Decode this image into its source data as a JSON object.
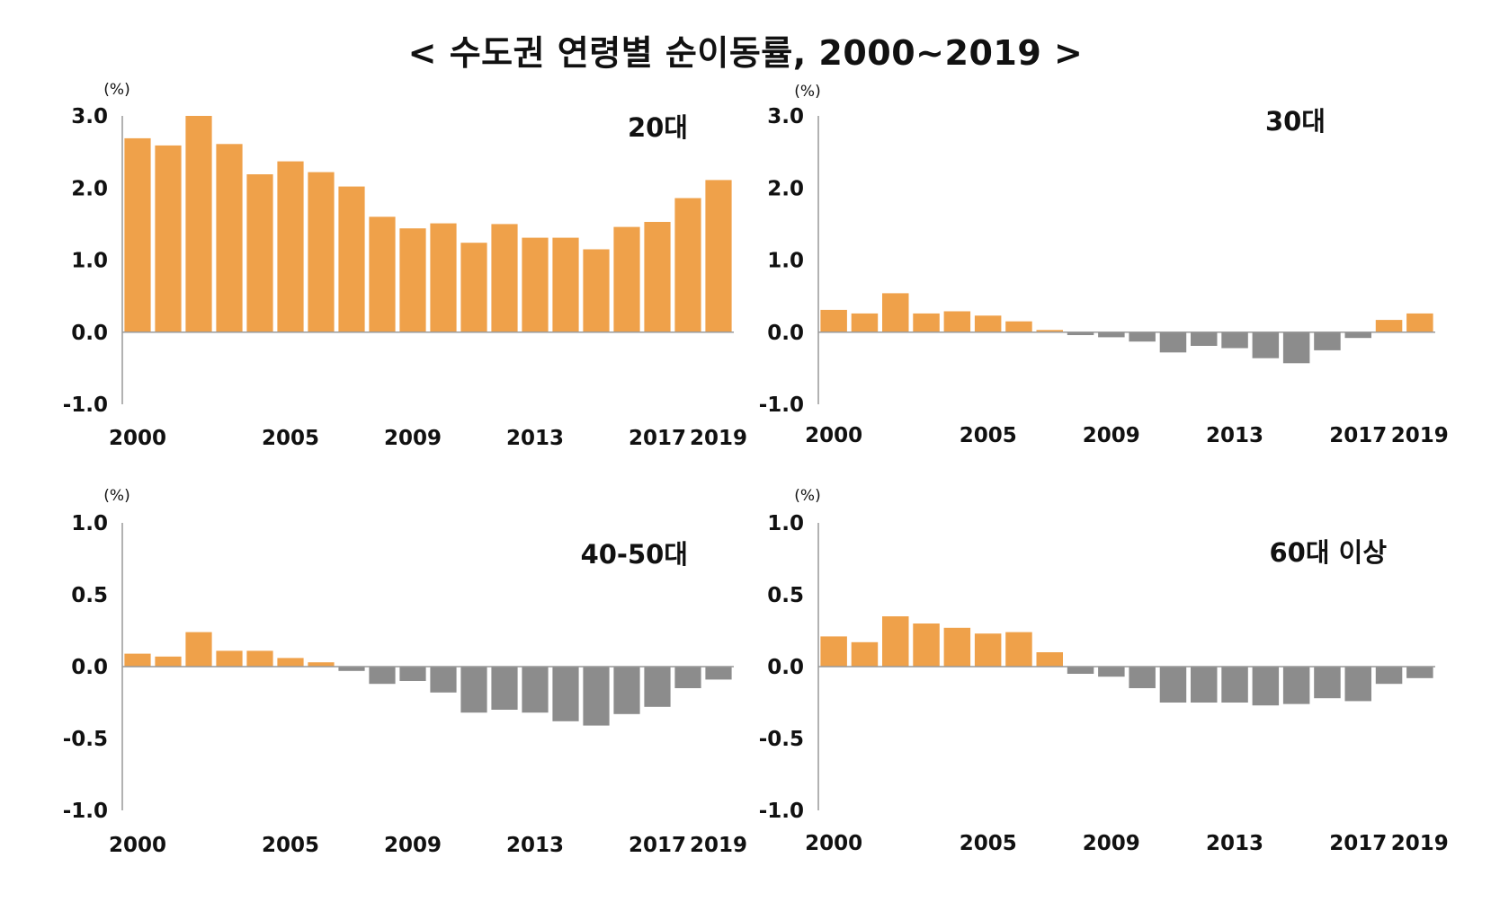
{
  "title": "< 수도권 연령별 순이동률, 2000~2019 >",
  "colors": {
    "positive": "#EFA14A",
    "negative": "#8C8C8C",
    "axis": "#999999"
  },
  "chart_data": [
    {
      "type": "bar",
      "title": "20대",
      "ylabel": "(%)",
      "ylim": [
        -1.0,
        3.0
      ],
      "yticks": [
        "3.0",
        "2.0",
        "1.0",
        "0.0",
        "-1.0"
      ],
      "ytick_values": [
        3.0,
        2.0,
        1.0,
        0.0,
        -1.0
      ],
      "x": [
        2000,
        2001,
        2002,
        2003,
        2004,
        2005,
        2006,
        2007,
        2008,
        2009,
        2010,
        2011,
        2012,
        2013,
        2014,
        2015,
        2016,
        2017,
        2018,
        2019
      ],
      "xtick_labels": [
        "2000",
        "2005",
        "2009",
        "2013",
        "2017",
        "2019"
      ],
      "values": [
        2.69,
        2.59,
        3.0,
        2.61,
        2.19,
        2.37,
        2.22,
        2.02,
        1.6,
        1.44,
        1.51,
        1.24,
        1.5,
        1.31,
        1.31,
        1.15,
        1.46,
        1.53,
        1.86,
        2.11
      ]
    },
    {
      "type": "bar",
      "title": "30대",
      "ylabel": "(%)",
      "ylim": [
        -1.0,
        3.0
      ],
      "yticks": [
        "3.0",
        "2.0",
        "1.0",
        "0.0",
        "-1.0"
      ],
      "ytick_values": [
        3.0,
        2.0,
        1.0,
        0.0,
        -1.0
      ],
      "x": [
        2000,
        2001,
        2002,
        2003,
        2004,
        2005,
        2006,
        2007,
        2008,
        2009,
        2010,
        2011,
        2012,
        2013,
        2014,
        2015,
        2016,
        2017,
        2018,
        2019
      ],
      "xtick_labels": [
        "2000",
        "2005",
        "2009",
        "2013",
        "2017",
        "2019"
      ],
      "values": [
        0.31,
        0.26,
        0.54,
        0.26,
        0.29,
        0.23,
        0.15,
        0.03,
        -0.04,
        -0.07,
        -0.13,
        -0.28,
        -0.19,
        -0.22,
        -0.36,
        -0.43,
        -0.25,
        -0.08,
        0.17,
        0.26
      ]
    },
    {
      "type": "bar",
      "title": "40-50대",
      "ylabel": "(%)",
      "ylim": [
        -1.0,
        1.0
      ],
      "yticks": [
        "1.0",
        "0.5",
        "0.0",
        "-0.5",
        "-1.0"
      ],
      "ytick_values": [
        1.0,
        0.5,
        0.0,
        -0.5,
        -1.0
      ],
      "x": [
        2000,
        2001,
        2002,
        2003,
        2004,
        2005,
        2006,
        2007,
        2008,
        2009,
        2010,
        2011,
        2012,
        2013,
        2014,
        2015,
        2016,
        2017,
        2018,
        2019
      ],
      "xtick_labels": [
        "2000",
        "2005",
        "2009",
        "2013",
        "2017",
        "2019"
      ],
      "values": [
        0.09,
        0.07,
        0.24,
        0.11,
        0.11,
        0.06,
        0.03,
        -0.03,
        -0.12,
        -0.1,
        -0.18,
        -0.32,
        -0.3,
        -0.32,
        -0.38,
        -0.41,
        -0.33,
        -0.28,
        -0.15,
        -0.09
      ]
    },
    {
      "type": "bar",
      "title": "60대 이상",
      "ylabel": "(%)",
      "ylim": [
        -1.0,
        1.0
      ],
      "yticks": [
        "1.0",
        "0.5",
        "0.0",
        "-0.5",
        "-1.0"
      ],
      "ytick_values": [
        1.0,
        0.5,
        0.0,
        -0.5,
        -1.0
      ],
      "x": [
        2000,
        2001,
        2002,
        2003,
        2004,
        2005,
        2006,
        2007,
        2008,
        2009,
        2010,
        2011,
        2012,
        2013,
        2014,
        2015,
        2016,
        2017,
        2018,
        2019
      ],
      "xtick_labels": [
        "2000",
        "2005",
        "2009",
        "2013",
        "2017",
        "2019"
      ],
      "values": [
        0.21,
        0.17,
        0.35,
        0.3,
        0.27,
        0.23,
        0.24,
        0.1,
        -0.05,
        -0.07,
        -0.15,
        -0.25,
        -0.25,
        -0.25,
        -0.27,
        -0.26,
        -0.22,
        -0.24,
        -0.12,
        -0.08
      ]
    }
  ]
}
